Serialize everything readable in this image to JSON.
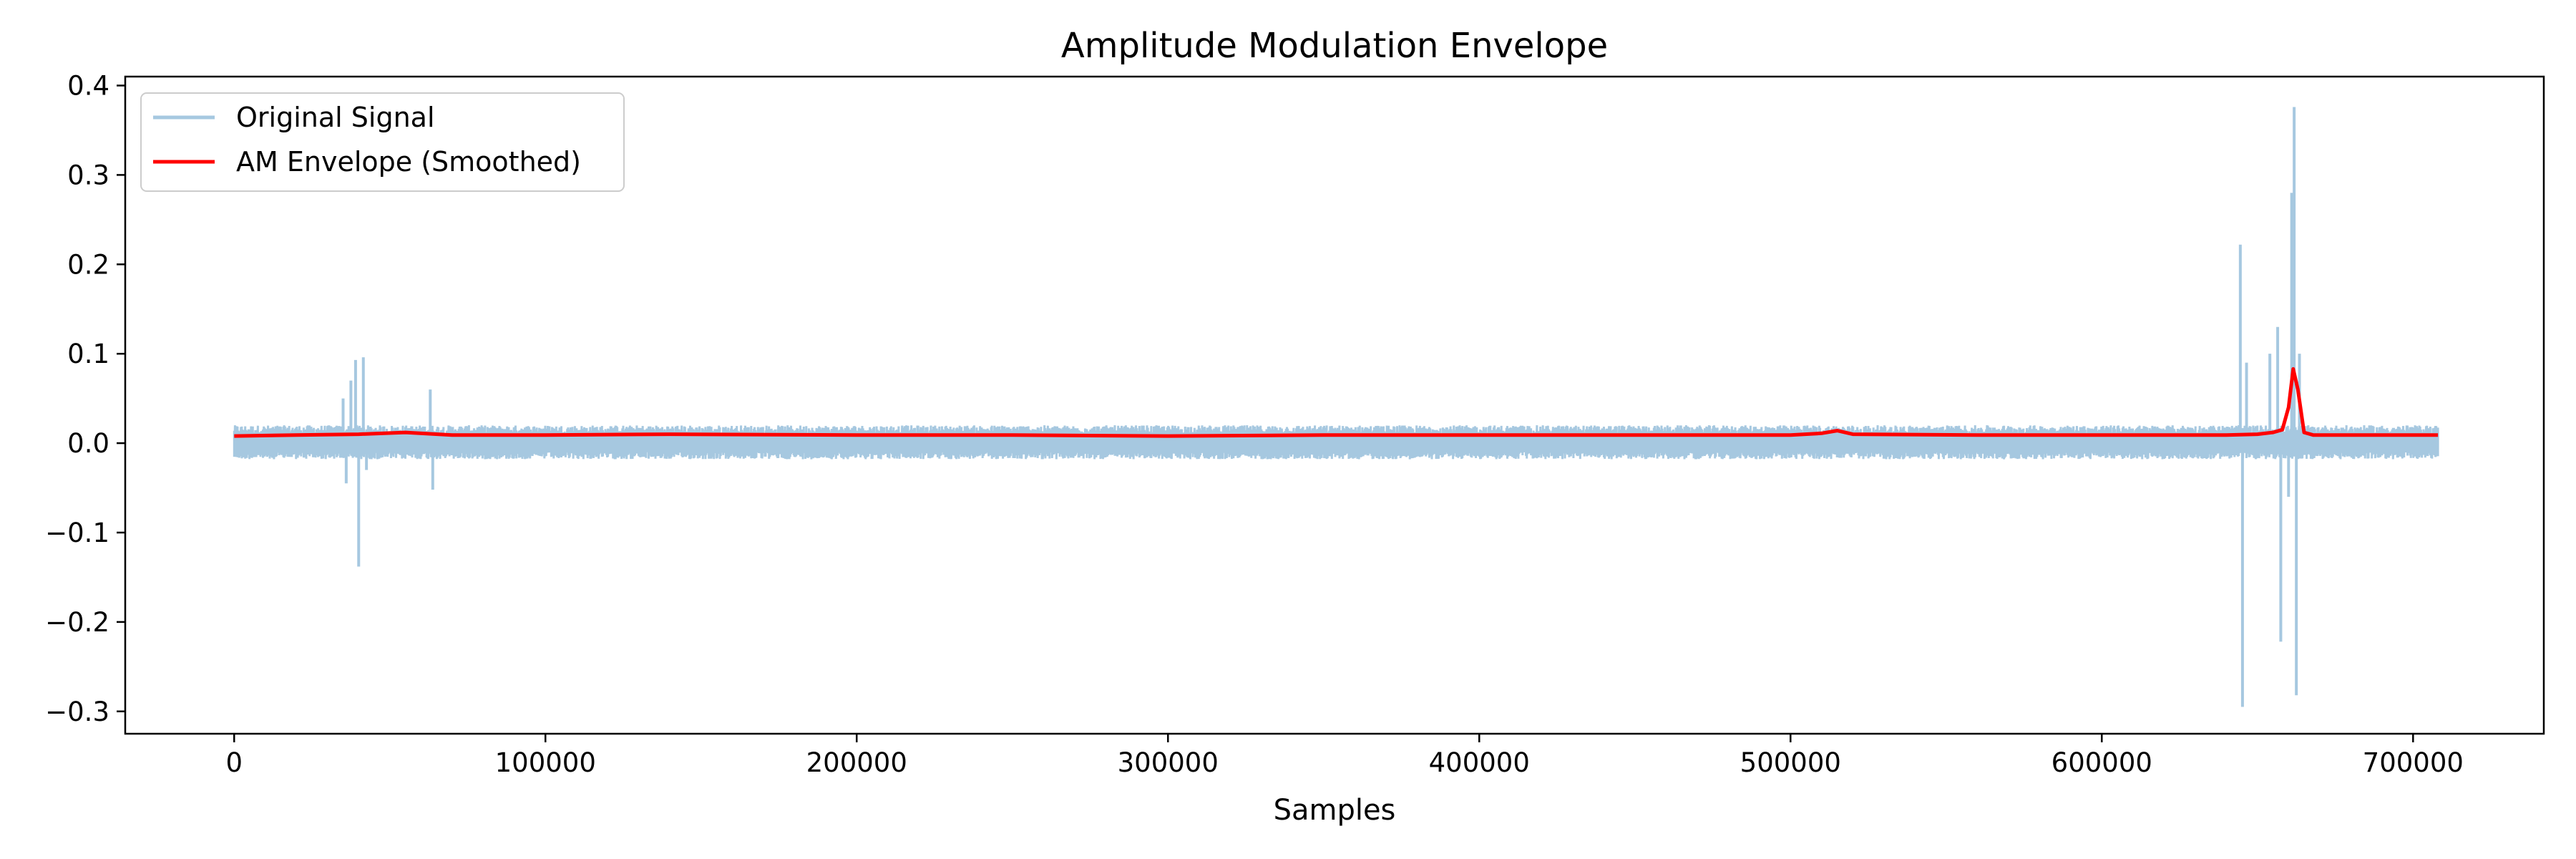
{
  "chart_data": {
    "type": "line",
    "title": "Amplitude Modulation Envelope",
    "xlabel": "Samples",
    "ylabel": "",
    "xlim": [
      -35000,
      742000
    ],
    "ylim": [
      -0.325,
      0.41
    ],
    "xticks": [
      0,
      100000,
      200000,
      300000,
      400000,
      500000,
      600000,
      700000
    ],
    "xtick_labels": [
      "0",
      "100000",
      "200000",
      "300000",
      "400000",
      "500000",
      "600000",
      "700000"
    ],
    "yticks": [
      -0.3,
      -0.2,
      -0.1,
      0.0,
      0.1,
      0.2,
      0.3,
      0.4
    ],
    "ytick_labels": [
      "−0.3",
      "−0.2",
      "−0.1",
      "0.0",
      "0.1",
      "0.2",
      "0.3",
      "0.4"
    ],
    "grid": false,
    "legend_position": "top-left",
    "series": [
      {
        "name": "Original Signal",
        "color": "#a6c8e0",
        "baseline_band": [
          -0.018,
          0.02
        ],
        "x_range": [
          0,
          708000
        ],
        "spikes": [
          {
            "x": 35000,
            "y": 0.05
          },
          {
            "x": 36000,
            "y": -0.045
          },
          {
            "x": 37500,
            "y": 0.07
          },
          {
            "x": 39000,
            "y": 0.093
          },
          {
            "x": 40000,
            "y": -0.138
          },
          {
            "x": 41500,
            "y": 0.096
          },
          {
            "x": 42500,
            "y": -0.03
          },
          {
            "x": 63000,
            "y": 0.06
          },
          {
            "x": 63800,
            "y": -0.052
          },
          {
            "x": 644500,
            "y": 0.222
          },
          {
            "x": 645200,
            "y": -0.295
          },
          {
            "x": 646500,
            "y": 0.09
          },
          {
            "x": 654000,
            "y": 0.1
          },
          {
            "x": 656500,
            "y": 0.13
          },
          {
            "x": 657500,
            "y": -0.222
          },
          {
            "x": 660000,
            "y": -0.06
          },
          {
            "x": 661000,
            "y": 0.28
          },
          {
            "x": 661800,
            "y": 0.376
          },
          {
            "x": 662500,
            "y": -0.282
          },
          {
            "x": 663500,
            "y": 0.1
          }
        ]
      },
      {
        "name": "AM Envelope (Smoothed)",
        "color": "#ff0000",
        "x": [
          0,
          20000,
          40000,
          55000,
          70000,
          100000,
          140000,
          200000,
          250000,
          300000,
          350000,
          400000,
          450000,
          500000,
          510000,
          515000,
          520000,
          560000,
          600000,
          640000,
          650000,
          655000,
          658000,
          660000,
          661500,
          663000,
          665000,
          668000,
          680000,
          708000
        ],
        "y": [
          0.008,
          0.009,
          0.01,
          0.012,
          0.009,
          0.009,
          0.01,
          0.009,
          0.009,
          0.008,
          0.009,
          0.009,
          0.009,
          0.009,
          0.011,
          0.014,
          0.01,
          0.009,
          0.009,
          0.009,
          0.01,
          0.012,
          0.015,
          0.04,
          0.083,
          0.06,
          0.012,
          0.009,
          0.009,
          0.009
        ]
      }
    ]
  }
}
